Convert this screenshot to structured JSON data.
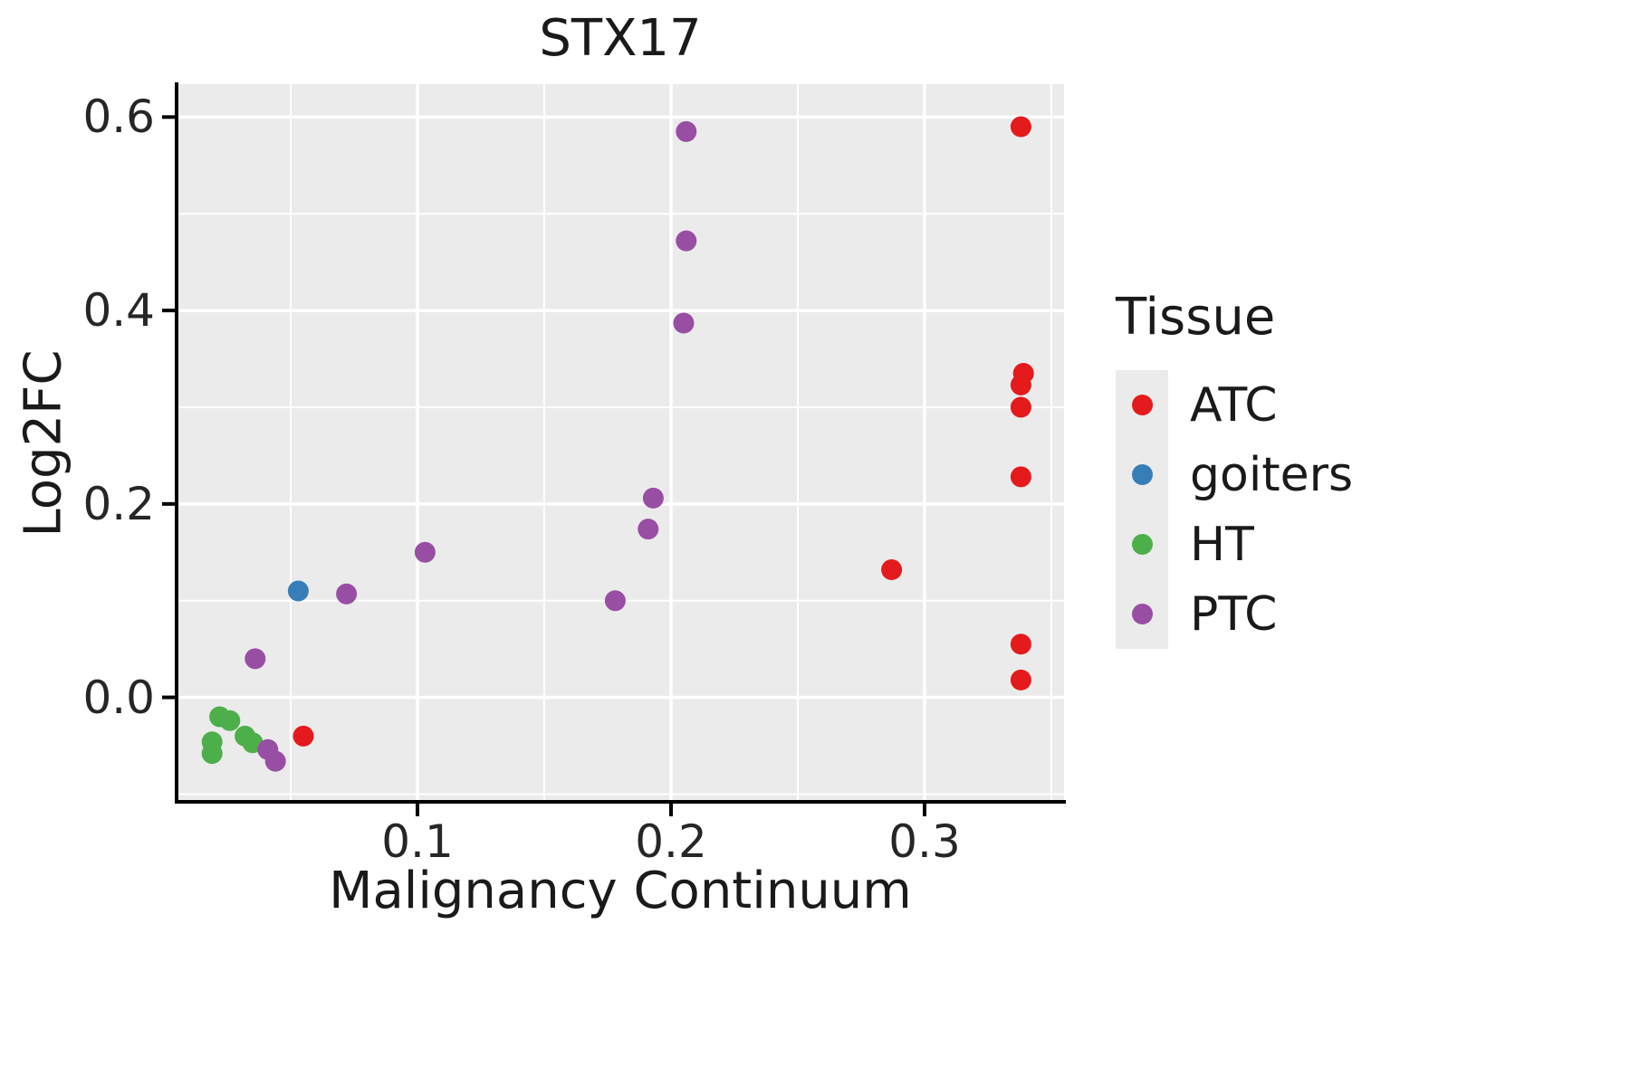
{
  "colors": {
    "panel_background": "#EBEBEB",
    "grid": "#FFFFFF",
    "axis": "#000000",
    "text": "#1A1A1A"
  },
  "chart_data": {
    "type": "scatter",
    "title": "STX17",
    "xlabel": "Malignancy Continuum",
    "ylabel": "Log2FC",
    "legend_title": "Tissue",
    "legend_position": "right",
    "grid": true,
    "xlim": [
      0.005,
      0.355
    ],
    "ylim": [
      -0.108,
      0.634
    ],
    "x_ticks": [
      0.1,
      0.2,
      0.3
    ],
    "x_tick_labels": [
      "0.1",
      "0.2",
      "0.3"
    ],
    "y_ticks": [
      0.0,
      0.2,
      0.4,
      0.6
    ],
    "y_tick_labels": [
      "0.0",
      "0.2",
      "0.4",
      "0.6"
    ],
    "x_minor_ticks": [
      0.05,
      0.15,
      0.25,
      0.35
    ],
    "y_minor_ticks": [
      -0.1,
      0.1,
      0.3,
      0.5
    ],
    "series": [
      {
        "name": "ATC",
        "color": "#E41A1C",
        "points": [
          [
            0.338,
            0.59
          ],
          [
            0.339,
            0.335
          ],
          [
            0.338,
            0.323
          ],
          [
            0.338,
            0.3
          ],
          [
            0.338,
            0.228
          ],
          [
            0.287,
            0.132
          ],
          [
            0.338,
            0.055
          ],
          [
            0.338,
            0.018
          ],
          [
            0.055,
            -0.04
          ]
        ]
      },
      {
        "name": "goiters",
        "color": "#377EB8",
        "points": [
          [
            0.053,
            0.11
          ]
        ]
      },
      {
        "name": "HT",
        "color": "#4DAF4A",
        "points": [
          [
            0.022,
            -0.02
          ],
          [
            0.026,
            -0.024
          ],
          [
            0.019,
            -0.046
          ],
          [
            0.019,
            -0.058
          ],
          [
            0.032,
            -0.04
          ],
          [
            0.035,
            -0.047
          ]
        ]
      },
      {
        "name": "PTC",
        "color": "#984EA3",
        "points": [
          [
            0.206,
            0.585
          ],
          [
            0.206,
            0.472
          ],
          [
            0.205,
            0.387
          ],
          [
            0.193,
            0.206
          ],
          [
            0.191,
            0.174
          ],
          [
            0.103,
            0.15
          ],
          [
            0.072,
            0.107
          ],
          [
            0.178,
            0.1
          ],
          [
            0.036,
            0.04
          ],
          [
            0.041,
            -0.054
          ],
          [
            0.044,
            -0.066
          ]
        ]
      }
    ]
  }
}
